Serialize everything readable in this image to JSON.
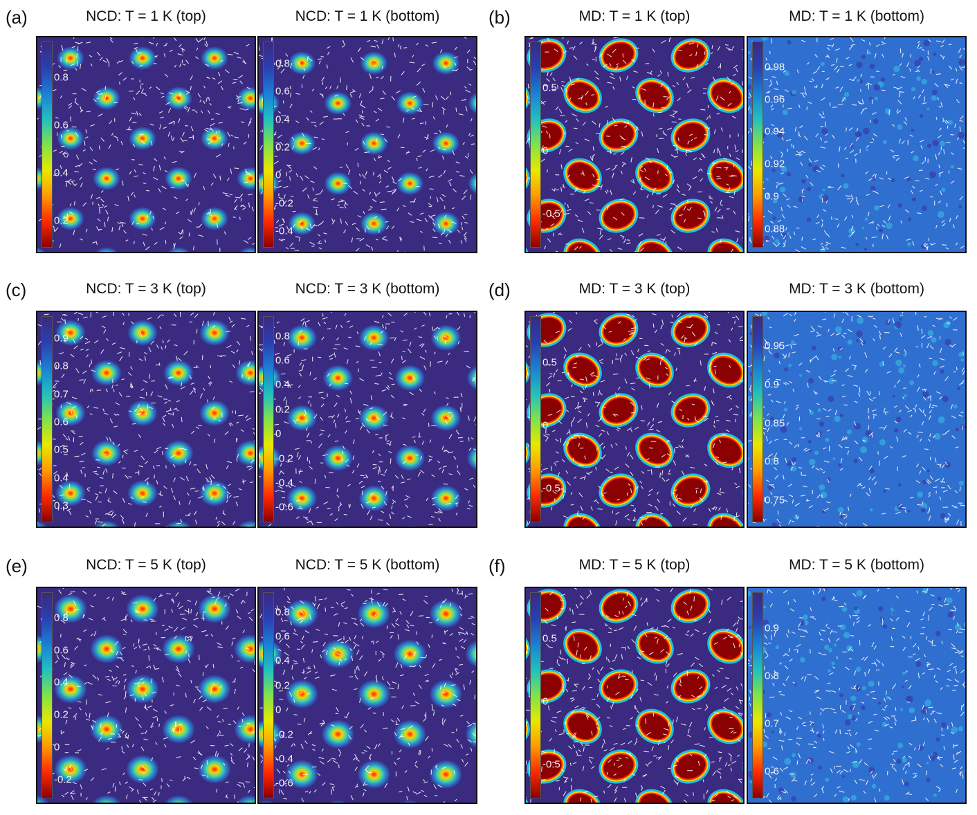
{
  "figure": {
    "rows": [
      {
        "groups": [
          {
            "label": "(a)",
            "panels": [
              {
                "title": "NCD: T = 1 K (top)",
                "kind": "ncd-top",
                "ticks": [
                  "0.8",
                  "0.6",
                  "0.4",
                  "0.2"
                ]
              },
              {
                "title": "NCD: T = 1 K (bottom)",
                "kind": "ncd-bottom",
                "ticks": [
                  "0.8",
                  "0.6",
                  "0.4",
                  "0.2",
                  "0",
                  "-0.2",
                  "-0.4"
                ]
              }
            ]
          },
          {
            "label": "(b)",
            "panels": [
              {
                "title": "MD: T = 1 K (top)",
                "kind": "md-top",
                "ticks": [
                  "0.5",
                  "0",
                  "-0.5"
                ]
              },
              {
                "title": "MD: T = 1 K (bottom)",
                "kind": "md-bottom",
                "ticks": [
                  "0.98",
                  "0.96",
                  "0.94",
                  "0.92",
                  "0.9",
                  "0.88"
                ]
              }
            ]
          }
        ]
      },
      {
        "groups": [
          {
            "label": "(c)",
            "panels": [
              {
                "title": "NCD: T = 3 K (top)",
                "kind": "ncd-top",
                "ticks": [
                  "0.9",
                  "0.8",
                  "0.7",
                  "0.6",
                  "0.5",
                  "0.4",
                  "0.3"
                ]
              },
              {
                "title": "NCD: T = 3 K (bottom)",
                "kind": "ncd-bottom",
                "ticks": [
                  "0.8",
                  "0.6",
                  "0.4",
                  "0.2",
                  "0",
                  "-0.2",
                  "-0.4",
                  "-0.6"
                ]
              }
            ]
          },
          {
            "label": "(d)",
            "panels": [
              {
                "title": "MD: T = 3 K (top)",
                "kind": "md-top",
                "ticks": [
                  "0.5",
                  "0",
                  "-0.5"
                ]
              },
              {
                "title": "MD: T = 3 K (bottom)",
                "kind": "md-bottom",
                "ticks": [
                  "0.95",
                  "0.9",
                  "0.85",
                  "0.8",
                  "0.75"
                ]
              }
            ]
          }
        ]
      },
      {
        "groups": [
          {
            "label": "(e)",
            "panels": [
              {
                "title": "NCD: T = 5 K (top)",
                "kind": "ncd-top",
                "ticks": [
                  "0.8",
                  "0.6",
                  "0.4",
                  "0.2",
                  "0",
                  "-0.2"
                ]
              },
              {
                "title": "NCD: T = 5 K (bottom)",
                "kind": "ncd-bottom",
                "ticks": [
                  "0.8",
                  "0.6",
                  "0.4",
                  "0.2",
                  "0",
                  "-0.2",
                  "-0.4",
                  "-0.6"
                ]
              }
            ]
          },
          {
            "label": "(f)",
            "panels": [
              {
                "title": "MD: T = 5 K (top)",
                "kind": "md-top",
                "ticks": [
                  "0.5",
                  "0",
                  "-0.5"
                ]
              },
              {
                "title": "MD: T = 5 K (bottom)",
                "kind": "md-bottom",
                "ticks": [
                  "0.9",
                  "0.8",
                  "0.7",
                  "0.6"
                ]
              }
            ]
          }
        ]
      }
    ],
    "colors": {
      "background": "#3a2a80",
      "md_bottom_background": "#2f6fd0",
      "skyrmion_core": "#8b0000",
      "arrows": "#ffffff"
    }
  }
}
